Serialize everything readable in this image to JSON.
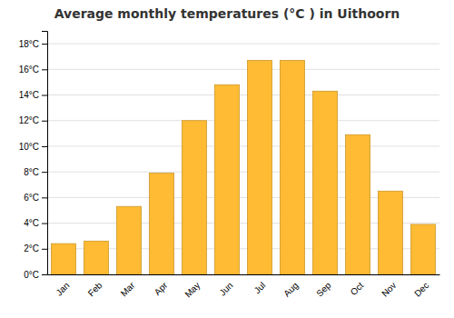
{
  "chart_data": {
    "type": "bar",
    "title": "Average monthly temperatures (°C ) in Uithoorn",
    "categories": [
      "Jan",
      "Feb",
      "Mar",
      "Apr",
      "May",
      "Jun",
      "Jul",
      "Aug",
      "Sep",
      "Oct",
      "Nov",
      "Dec"
    ],
    "values": [
      2.4,
      2.6,
      5.3,
      7.9,
      12.0,
      14.8,
      16.7,
      16.7,
      14.3,
      10.9,
      6.5,
      3.9
    ],
    "color": "#FFBB33",
    "ylim": [
      0,
      19
    ],
    "yticks": [
      {
        "value": 0,
        "label": "0°C"
      },
      {
        "value": 2,
        "label": "2°C"
      },
      {
        "value": 4,
        "label": "4°C"
      },
      {
        "value": 6,
        "label": "6°C"
      },
      {
        "value": 8,
        "label": "8°C"
      },
      {
        "value": 10,
        "label": "10°C"
      },
      {
        "value": 12,
        "label": "12°C"
      },
      {
        "value": 14,
        "label": "14°C"
      },
      {
        "value": 16,
        "label": "16°C"
      },
      {
        "value": 18,
        "label": "18°C"
      }
    ],
    "grid": true
  }
}
